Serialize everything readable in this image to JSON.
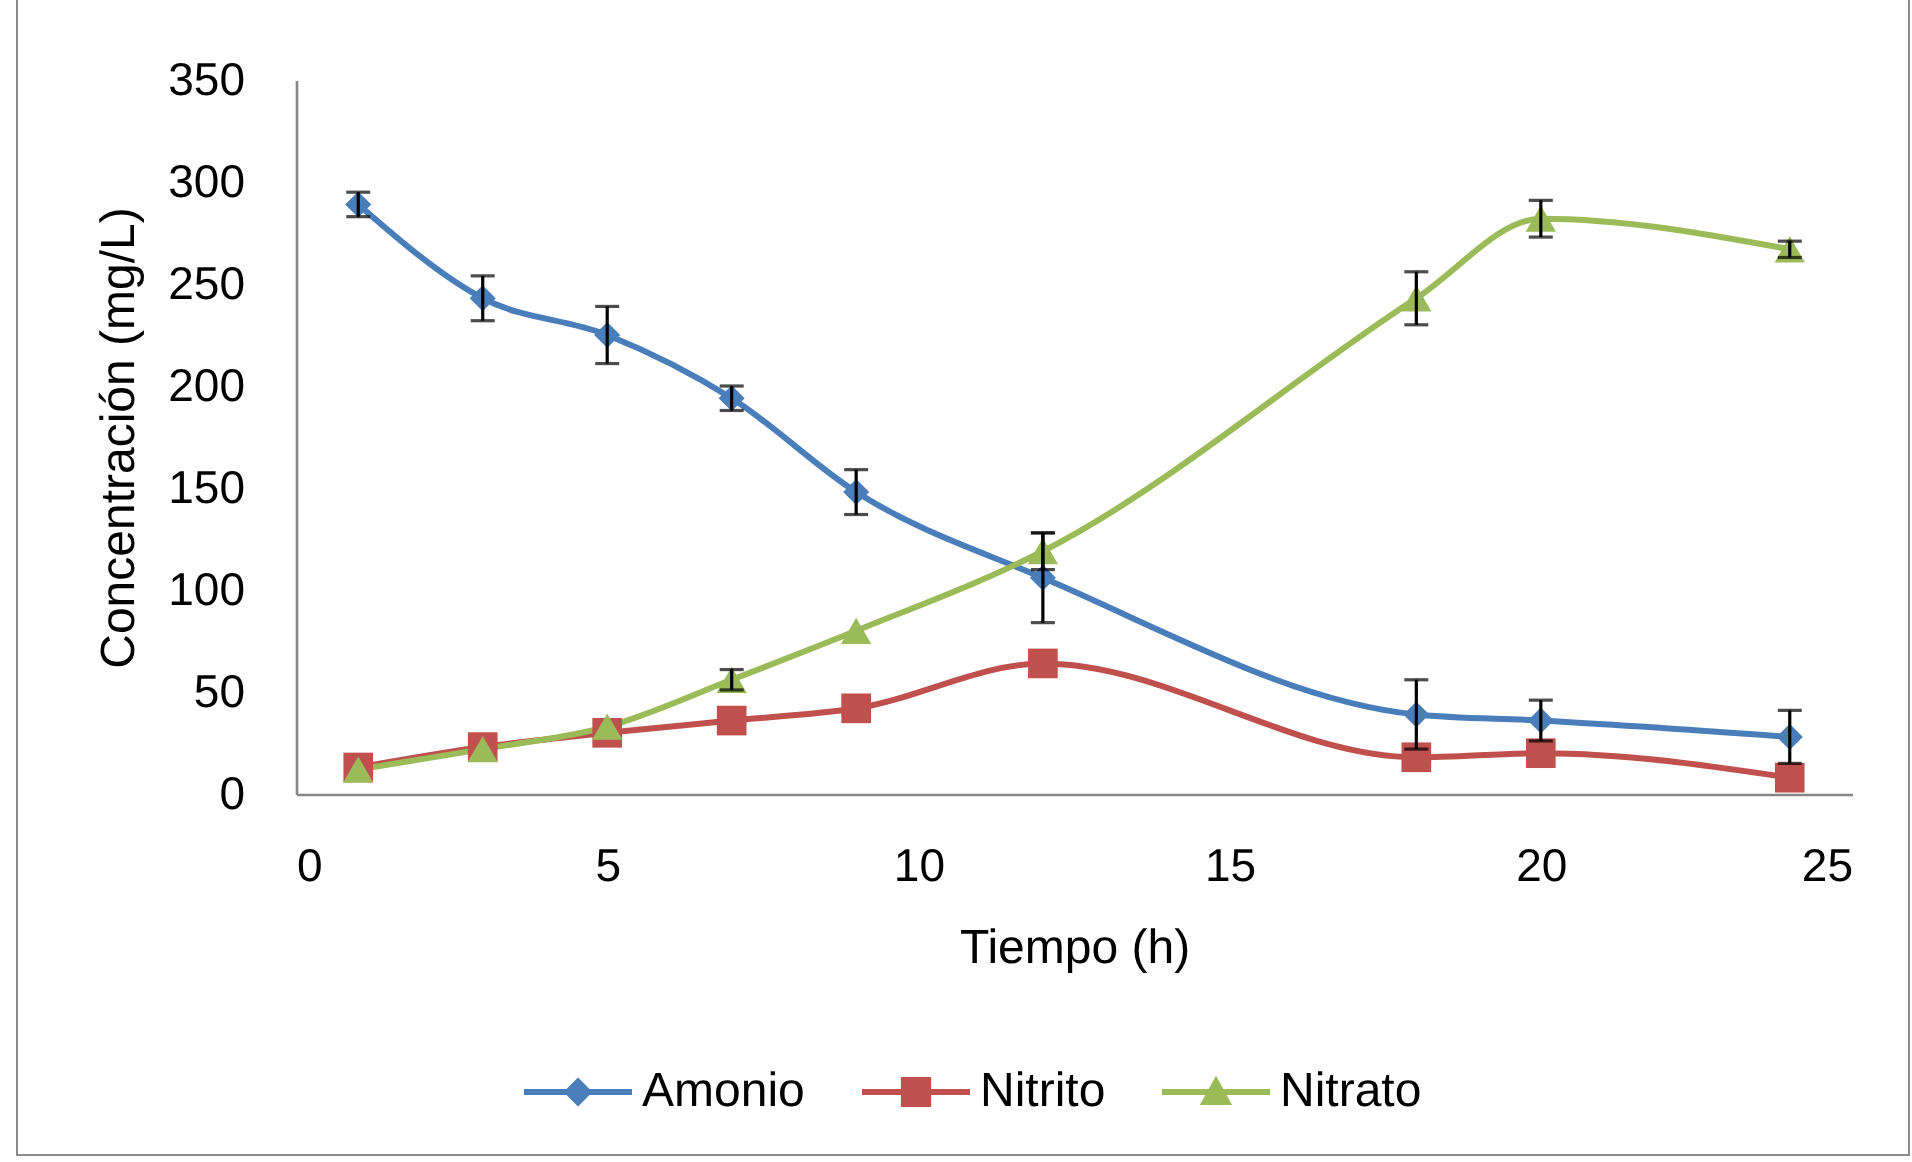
{
  "chart_data": {
    "type": "line",
    "xlabel": "Tiempo (h)",
    "ylabel": "Concentración (mg/L)",
    "x": [
      1,
      3,
      5,
      7,
      9,
      12,
      18,
      20,
      24
    ],
    "series": [
      {
        "name": "Amonio",
        "color": "#4a7ebb",
        "marker": "diamond",
        "values": [
          289,
          243,
          225,
          194,
          148,
          106,
          39,
          36,
          28
        ],
        "errors": [
          6,
          11,
          14,
          6,
          11,
          22,
          17,
          10,
          13
        ]
      },
      {
        "name": "Nitrito",
        "color": "#c0504d",
        "marker": "square",
        "values": [
          13,
          23,
          30,
          36,
          42,
          64,
          18,
          20,
          8
        ]
      },
      {
        "name": "Nitrato",
        "color": "#9bbb59",
        "marker": "triangle",
        "values": [
          12,
          22,
          33,
          56,
          80,
          119,
          243,
          282,
          267
        ],
        "errors": [
          null,
          null,
          null,
          5,
          null,
          9,
          13,
          9,
          4
        ]
      }
    ],
    "xlim": [
      0,
      25
    ],
    "xticks": [
      0,
      5,
      10,
      15,
      20,
      25
    ],
    "ylim": [
      0,
      350
    ],
    "yticks": [
      0,
      50,
      100,
      150,
      200,
      250,
      300,
      350
    ],
    "legend": "bottom"
  }
}
